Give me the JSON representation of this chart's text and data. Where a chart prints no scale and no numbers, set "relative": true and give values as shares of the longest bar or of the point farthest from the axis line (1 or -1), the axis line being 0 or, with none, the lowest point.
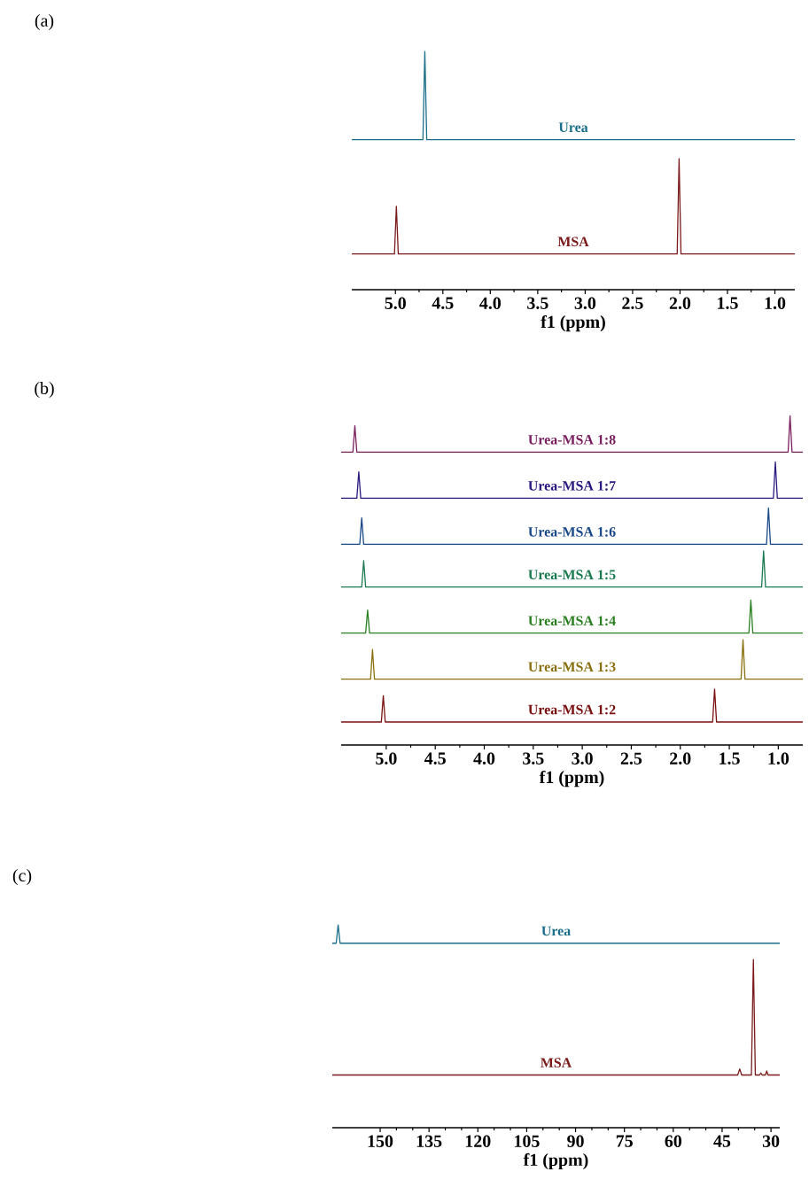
{
  "chart_data": [
    {
      "type": "line",
      "relative": true,
      "xlabel": "f1 (ppm)",
      "annotations": [
        "(a)"
      ],
      "xlim": [
        5.46,
        0.79
      ],
      "xticks": [
        {
          "value": 5,
          "label": "5.0"
        },
        {
          "value": 4.5,
          "label": "4.5"
        },
        {
          "value": 4,
          "label": "4.0"
        },
        {
          "value": 3.5,
          "label": "3.5"
        },
        {
          "value": 3,
          "label": "3.0"
        },
        {
          "value": 2.5,
          "label": "2.5"
        },
        {
          "value": 2,
          "label": "2.0"
        },
        {
          "value": 1.5,
          "label": "1.5"
        },
        {
          "value": 1,
          "label": "1.0"
        }
      ],
      "series": [
        {
          "name": "Urea",
          "color": "#1a6e8a",
          "x": [
            5.46,
            4.71,
            4.69,
            4.67,
            0.79
          ],
          "values": [
            0.63,
            0.63,
            1.0,
            0.63,
            0.63
          ]
        },
        {
          "name": "MSA",
          "color": "#7a1a1a",
          "x": [
            5.46,
            5.01,
            4.99,
            4.97,
            2.03,
            2.01,
            1.99,
            0.79
          ],
          "values": [
            0.15,
            0.15,
            0.35,
            0.15,
            0.15,
            0.55,
            0.15,
            0.15
          ]
        }
      ]
    },
    {
      "type": "line",
      "relative": true,
      "xlabel": "f1 (ppm)",
      "annotations": [
        "(b)"
      ],
      "xlim": [
        5.46,
        0.75
      ],
      "xticks": [
        {
          "value": 5,
          "label": "5.0"
        },
        {
          "value": 4.5,
          "label": "4.5"
        },
        {
          "value": 4,
          "label": "4.0"
        },
        {
          "value": 3.5,
          "label": "3.5"
        },
        {
          "value": 3,
          "label": "3.0"
        },
        {
          "value": 2.5,
          "label": "2.5"
        },
        {
          "value": 2,
          "label": "2.0"
        },
        {
          "value": 1.5,
          "label": "1.5"
        },
        {
          "value": 1,
          "label": "1.0"
        }
      ],
      "series": [
        {
          "name": "Urea-MSA 1:8",
          "color": "#7a2060",
          "x": [
            5.46,
            5.34,
            5.32,
            5.3,
            0.9,
            0.88,
            0.86,
            0.75
          ],
          "values": [
            0.89,
            0.89,
            0.97,
            0.89,
            0.89,
            1.0,
            0.89,
            0.89
          ]
        },
        {
          "name": "Urea-MSA 1:7",
          "color": "#2a1a80",
          "x": [
            5.46,
            5.3,
            5.28,
            5.26,
            1.05,
            1.03,
            1.01,
            0.75
          ],
          "values": [
            0.75,
            0.75,
            0.83,
            0.75,
            0.75,
            0.86,
            0.75,
            0.75
          ]
        },
        {
          "name": "Urea-MSA 1:6",
          "color": "#1a4a8a",
          "x": [
            5.46,
            5.27,
            5.25,
            5.23,
            1.12,
            1.1,
            1.08,
            0.75
          ],
          "values": [
            0.61,
            0.61,
            0.69,
            0.61,
            0.61,
            0.72,
            0.61,
            0.61
          ]
        },
        {
          "name": "Urea-MSA 1:5",
          "color": "#1a7a50",
          "x": [
            5.46,
            5.25,
            5.23,
            5.21,
            1.17,
            1.15,
            1.13,
            0.75
          ],
          "values": [
            0.48,
            0.48,
            0.56,
            0.48,
            0.48,
            0.59,
            0.48,
            0.48
          ]
        },
        {
          "name": "Urea-MSA 1:4",
          "color": "#2a8020",
          "x": [
            5.46,
            5.21,
            5.19,
            5.17,
            1.3,
            1.28,
            1.26,
            0.75
          ],
          "values": [
            0.34,
            0.34,
            0.41,
            0.34,
            0.34,
            0.44,
            0.34,
            0.34
          ]
        },
        {
          "name": "Urea-MSA 1:3",
          "color": "#8a7010",
          "x": [
            5.46,
            5.16,
            5.14,
            5.12,
            1.38,
            1.36,
            1.34,
            0.75
          ],
          "values": [
            0.2,
            0.2,
            0.29,
            0.2,
            0.2,
            0.32,
            0.2,
            0.2
          ]
        },
        {
          "name": "Urea-MSA 1:2",
          "color": "#7a1010",
          "x": [
            5.46,
            5.05,
            5.03,
            5.01,
            1.67,
            1.65,
            1.63,
            0.75
          ],
          "values": [
            0.07,
            0.07,
            0.15,
            0.07,
            0.07,
            0.17,
            0.07,
            0.07
          ]
        }
      ]
    },
    {
      "type": "line",
      "relative": true,
      "xlabel": "f1 (ppm)",
      "annotations": [
        "(c)"
      ],
      "xlim": [
        164.7,
        27.3
      ],
      "xticks": [
        150,
        135,
        120,
        105,
        90,
        75,
        60,
        45,
        30
      ],
      "series": [
        {
          "name": "Urea",
          "color": "#1a6e8a",
          "x": [
            164.7,
            163.5,
            162.9,
            162.3,
            27.3
          ],
          "values": [
            0.91,
            0.91,
            1.0,
            0.91,
            0.91
          ]
        },
        {
          "name": "MSA",
          "color": "#7a1a1a",
          "x": [
            164.7,
            40.2,
            39.6,
            39.0,
            36.0,
            35.4,
            34.8,
            33.5,
            33.1,
            32.7,
            31.7,
            31.3,
            30.9,
            27.3
          ],
          "values": [
            0.26,
            0.26,
            0.29,
            0.26,
            0.26,
            0.83,
            0.26,
            0.26,
            0.27,
            0.26,
            0.26,
            0.28,
            0.26,
            0.26
          ]
        }
      ]
    }
  ]
}
